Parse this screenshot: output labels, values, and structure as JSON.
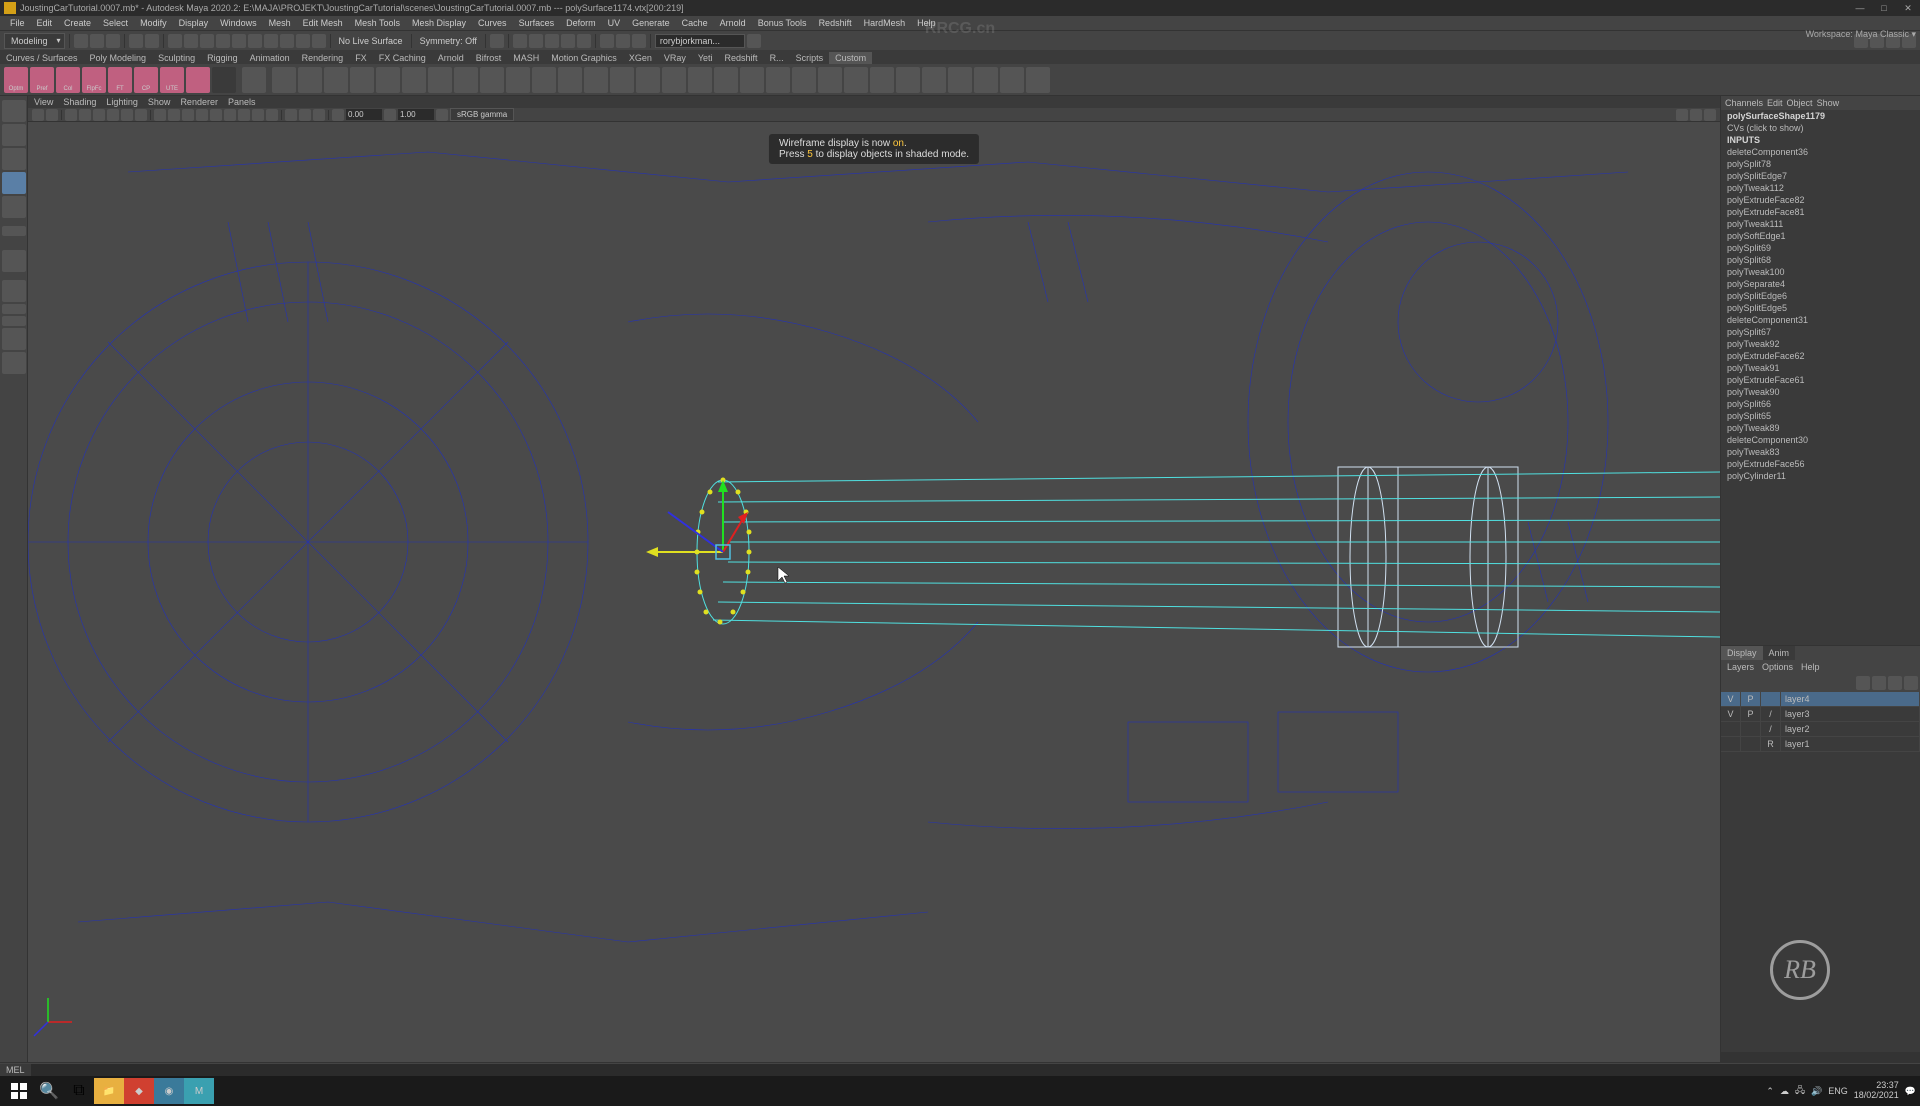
{
  "titlebar": {
    "text": "JoustingCarTutorial.0007.mb* - Autodesk Maya 2020.2: E:\\MAJA\\PROJEKT\\JoustingCarTutorial\\scenes\\JoustingCarTutorial.0007.mb   ---   polySurface1174.vtx[200:219]"
  },
  "menu": {
    "items": [
      "File",
      "Edit",
      "Create",
      "Select",
      "Modify",
      "Display",
      "Windows",
      "Mesh",
      "Edit Mesh",
      "Mesh Tools",
      "Mesh Display",
      "Curves",
      "Surfaces",
      "Deform",
      "UV",
      "Generate",
      "Cache",
      "Arnold",
      "Bonus Tools",
      "Redshift",
      "HardMesh",
      "Help"
    ]
  },
  "workspace": {
    "label": "Workspace:",
    "value": "Maya Classic"
  },
  "toolbar": {
    "dropdown": "Modeling",
    "nolive": "No Live Surface",
    "symmetry": "Symmetry: Off",
    "user": "rorybjorkman..."
  },
  "tabs": {
    "items": [
      "Curves / Surfaces",
      "Poly Modeling",
      "Sculpting",
      "Rigging",
      "Animation",
      "Rendering",
      "FX",
      "FX Caching",
      "Arnold",
      "Bifrost",
      "MASH",
      "Motion Graphics",
      "XGen",
      "VRay",
      "Yeti",
      "Redshift",
      "R...",
      "Scripts",
      "Custom"
    ],
    "active": 18
  },
  "shelf": {
    "labels": [
      "Optm",
      "Pref",
      "Col",
      "FlpFc",
      "FT",
      "CP",
      "UTE",
      "",
      "",
      "",
      "",
      "",
      "",
      "",
      "",
      "",
      "",
      "",
      "",
      "",
      "",
      "",
      "",
      "",
      "",
      "",
      "",
      "",
      "",
      "",
      "",
      "",
      "",
      "",
      "",
      "",
      ""
    ]
  },
  "vp_menu": {
    "items": [
      "View",
      "Shading",
      "Lighting",
      "Show",
      "Renderer",
      "Panels"
    ]
  },
  "vp_toolbar": {
    "val1": "0.00",
    "val2": "1.00",
    "dd": "sRGB gamma"
  },
  "hud": {
    "line1_pre": "Wireframe display is now ",
    "line1_on": "on",
    "line1_post": ".",
    "line2_pre": "Press ",
    "line2_key": "5",
    "line2_post": " to display objects in shaded mode."
  },
  "channel": {
    "header": [
      "Channels",
      "Edit",
      "Object",
      "Show"
    ],
    "inputs_label": "INPUTS",
    "items": [
      {
        "t": "polySurfaceShape1179",
        "b": true
      },
      {
        "t": "CVs (click to show)",
        "b": false
      },
      {
        "t": "deleteComponent36",
        "b": false
      },
      {
        "t": "polySplit78",
        "b": false
      },
      {
        "t": "polySplitEdge7",
        "b": false
      },
      {
        "t": "polyTweak112",
        "b": false
      },
      {
        "t": "polyExtrudeFace82",
        "b": false
      },
      {
        "t": "polyExtrudeFace81",
        "b": false
      },
      {
        "t": "polyTweak111",
        "b": false
      },
      {
        "t": "polySoftEdge1",
        "b": false
      },
      {
        "t": "polySplit69",
        "b": false
      },
      {
        "t": "polySplit68",
        "b": false
      },
      {
        "t": "polyTweak100",
        "b": false
      },
      {
        "t": "polySeparate4",
        "b": false
      },
      {
        "t": "polySplitEdge6",
        "b": false
      },
      {
        "t": "polySplitEdge5",
        "b": false
      },
      {
        "t": "deleteComponent31",
        "b": false
      },
      {
        "t": "polySplit67",
        "b": false
      },
      {
        "t": "polyTweak92",
        "b": false
      },
      {
        "t": "polyExtrudeFace62",
        "b": false
      },
      {
        "t": "polyTweak91",
        "b": false
      },
      {
        "t": "polyExtrudeFace61",
        "b": false
      },
      {
        "t": "polyTweak90",
        "b": false
      },
      {
        "t": "polySplit66",
        "b": false
      },
      {
        "t": "polySplit65",
        "b": false
      },
      {
        "t": "polyTweak89",
        "b": false
      },
      {
        "t": "deleteComponent30",
        "b": false
      },
      {
        "t": "polyTweak83",
        "b": false
      },
      {
        "t": "polyExtrudeFace56",
        "b": false
      },
      {
        "t": "polyCylinder11",
        "b": false
      }
    ]
  },
  "layers": {
    "tabs": [
      "Display",
      "Anim"
    ],
    "menu": [
      "Layers",
      "Options",
      "Help"
    ],
    "header": [
      "V",
      "P",
      "",
      ""
    ],
    "rows": [
      {
        "c1": "V",
        "c2": "P",
        "c3": "",
        "name": "layer4",
        "sel": true
      },
      {
        "c1": "V",
        "c2": "P",
        "c3": "/",
        "name": "layer3",
        "sel": false
      },
      {
        "c1": "",
        "c2": "",
        "c3": "/",
        "name": "layer2",
        "sel": false
      },
      {
        "c1": "",
        "c2": "",
        "c3": "R",
        "name": "layer1",
        "sel": false
      }
    ]
  },
  "cmd": {
    "label": "MEL"
  },
  "taskbar": {
    "time": "23:37",
    "date": "18/02/2021"
  },
  "watermark": {
    "center": "RRCG.cn"
  },
  "viewport_svg": {
    "bg": "#4a4a4a",
    "wire_blue": "#2030c0",
    "sel_cyan": "#50e0e0",
    "sel_white": "#d0e0f0",
    "axis_green": "#20e020",
    "axis_red": "#e02020",
    "axis_yellow": "#e0e020",
    "axis_blue": "#3030e0"
  }
}
